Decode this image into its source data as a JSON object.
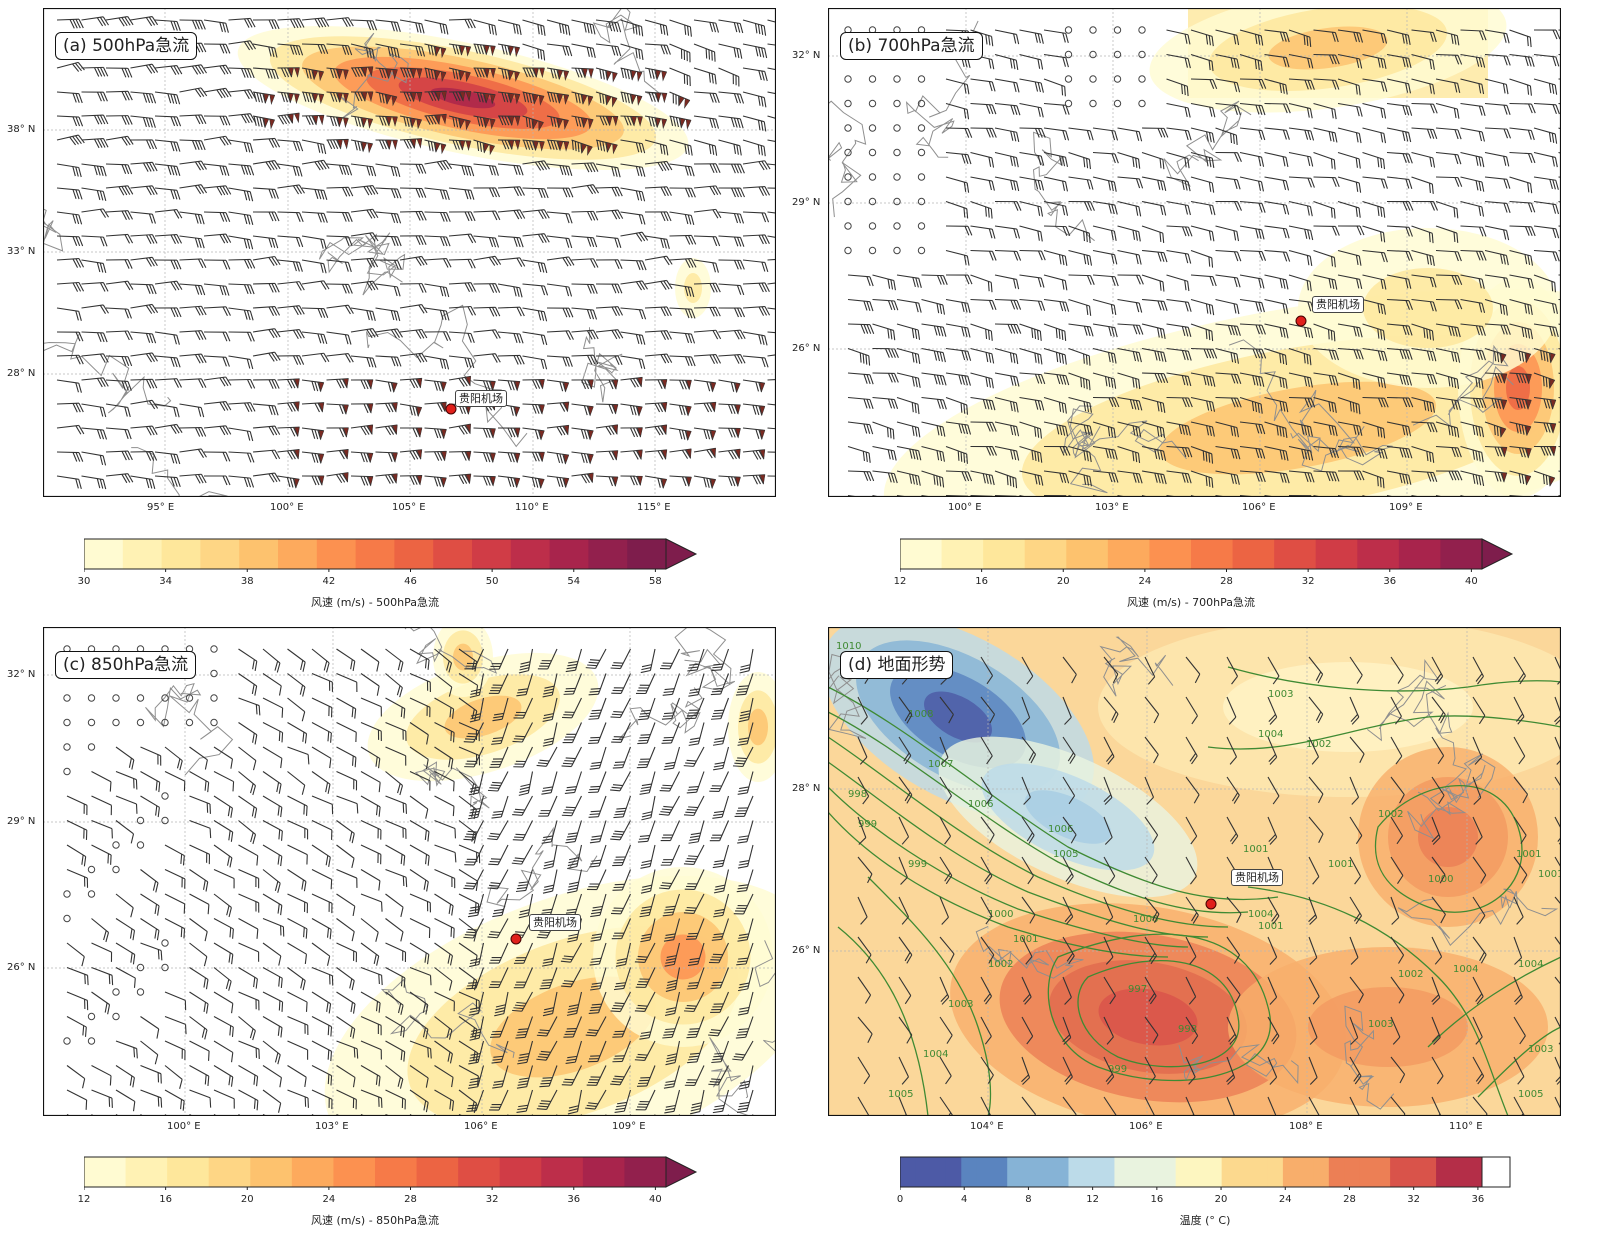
{
  "panels": [
    {
      "id": "a",
      "title": "(a) 500hPa急流",
      "xticks": [
        "95° E",
        "100° E",
        "105° E",
        "110° E",
        "115° E"
      ],
      "yticks": [
        "38° N",
        "33° N",
        "28° N"
      ],
      "station_label": "贵阳机场",
      "shading": "jet-north",
      "colorbar": {
        "ticks": [
          "30",
          "34",
          "38",
          "42",
          "46",
          "50",
          "54",
          "58"
        ],
        "title": "风速 (m/s) - 500hPa急流",
        "palette": "warm",
        "segments": 15
      }
    },
    {
      "id": "b",
      "title": "(b) 700hPa急流",
      "xticks": [
        "100° E",
        "103° E",
        "106° E",
        "109° E"
      ],
      "yticks": [
        "32° N",
        "29° N",
        "26° N"
      ],
      "station_label": "贵阳机场",
      "shading": "southeast",
      "colorbar": {
        "ticks": [
          "12",
          "16",
          "20",
          "24",
          "28",
          "32",
          "36",
          "40"
        ],
        "title": "风速 (m/s) - 700hPa急流",
        "palette": "warm",
        "segments": 14
      }
    },
    {
      "id": "c",
      "title": "(c) 850hPa急流",
      "xticks": [
        "100° E",
        "103° E",
        "106° E",
        "109° E"
      ],
      "yticks": [
        "32° N",
        "29° N",
        "26° N"
      ],
      "station_label": "贵阳机场",
      "shading": "southeast-north",
      "colorbar": {
        "ticks": [
          "12",
          "16",
          "20",
          "24",
          "28",
          "32",
          "36",
          "40"
        ],
        "title": "风速 (m/s) - 850hPa急流",
        "palette": "warm",
        "segments": 14
      }
    },
    {
      "id": "d",
      "title": "(d) 地面形势",
      "xticks": [
        "104° E",
        "106° E",
        "108° E",
        "110° E"
      ],
      "yticks": [
        "28° N",
        "26° N"
      ],
      "station_label": "贵阳机场",
      "shading": "temperature",
      "contour_labels": [
        "1010",
        "1008",
        "1007",
        "1006",
        "1006",
        "1005",
        "999",
        "998",
        "999",
        "1000",
        "1001",
        "1002",
        "1003",
        "1004",
        "1005",
        "1000",
        "1001",
        "997",
        "998",
        "999",
        "1001",
        "1002",
        "1003",
        "1004",
        "1001",
        "1000",
        "1001",
        "1002",
        "1003",
        "1004",
        "1004",
        "1003",
        "1005",
        "1001",
        "1002",
        "1004"
      ],
      "colorbar": {
        "ticks": [
          "0",
          "4",
          "8",
          "12",
          "16",
          "20",
          "24",
          "28",
          "32",
          "36"
        ],
        "title": "温度 (° C)",
        "palette": "coolwarm",
        "segments": 38
      }
    }
  ],
  "colors": {
    "warm": [
      "#fffbd2",
      "#fff2b4",
      "#fee79b",
      "#fed685",
      "#fdc26e",
      "#fdaa5d",
      "#fc9150",
      "#f67a48",
      "#ec6443",
      "#df4e44",
      "#d03c46",
      "#bd2e4a",
      "#a8244c",
      "#92204d",
      "#7e1d4c"
    ],
    "contour": "#3f8a33",
    "barb": "#333333",
    "flag": "#7a2a22",
    "station": "#e0201b",
    "border": "#8f8f8f"
  }
}
